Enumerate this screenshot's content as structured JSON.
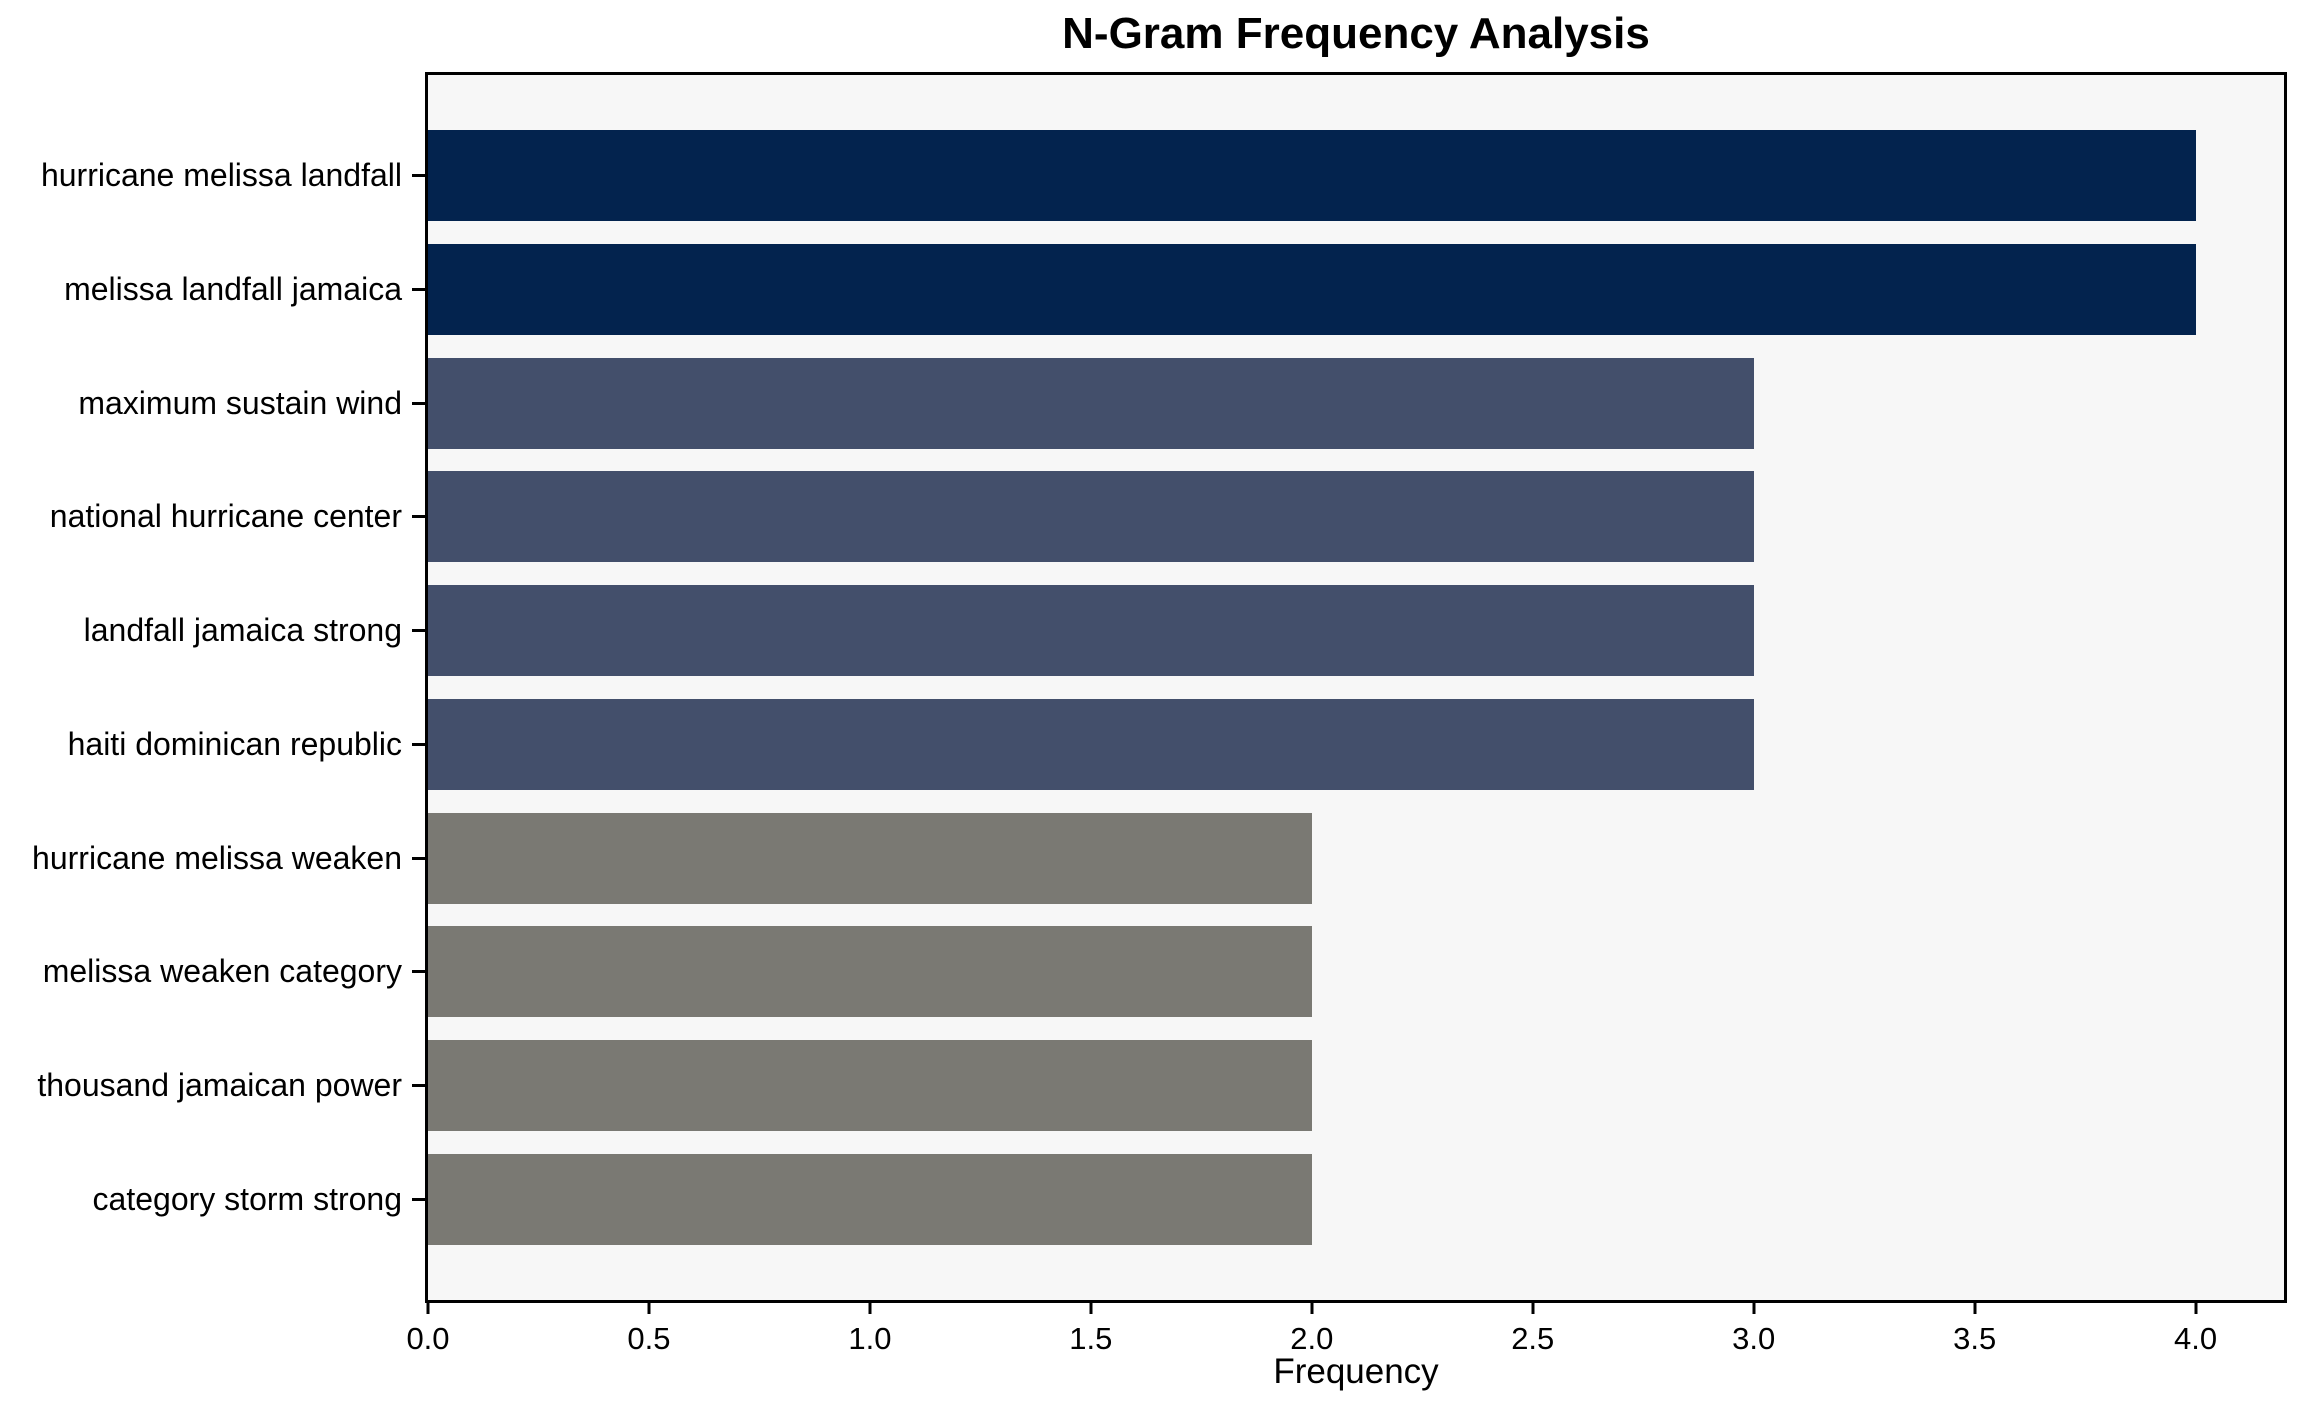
{
  "chart_data": {
    "type": "bar",
    "orientation": "horizontal",
    "title": "N-Gram Frequency Analysis",
    "xlabel": "Frequency",
    "ylabel": "",
    "categories": [
      "hurricane melissa landfall",
      "melissa landfall jamaica",
      "maximum sustain wind",
      "national hurricane center",
      "landfall jamaica strong",
      "haiti dominican republic",
      "hurricane melissa weaken",
      "melissa weaken category",
      "thousand jamaican power",
      "category storm strong"
    ],
    "values": [
      4,
      4,
      3,
      3,
      3,
      3,
      2,
      2,
      2,
      2
    ],
    "bar_colors": [
      "#03234e",
      "#03234e",
      "#434f6b",
      "#434f6b",
      "#434f6b",
      "#434f6b",
      "#7a7973",
      "#7a7973",
      "#7a7973",
      "#7a7973"
    ],
    "xlim": [
      0,
      4.2
    ],
    "xticks": [
      0.0,
      0.5,
      1.0,
      1.5,
      2.0,
      2.5,
      3.0,
      3.5,
      4.0
    ],
    "xtick_labels": [
      "0.0",
      "0.5",
      "1.0",
      "1.5",
      "2.0",
      "2.5",
      "3.0",
      "3.5",
      "4.0"
    ],
    "grid": false,
    "legend_position": "none",
    "plot_bg": "#f7f7f7",
    "figure_bg": "#ffffff",
    "spine_color": "#000000",
    "bar_height_ratio": 0.8
  }
}
